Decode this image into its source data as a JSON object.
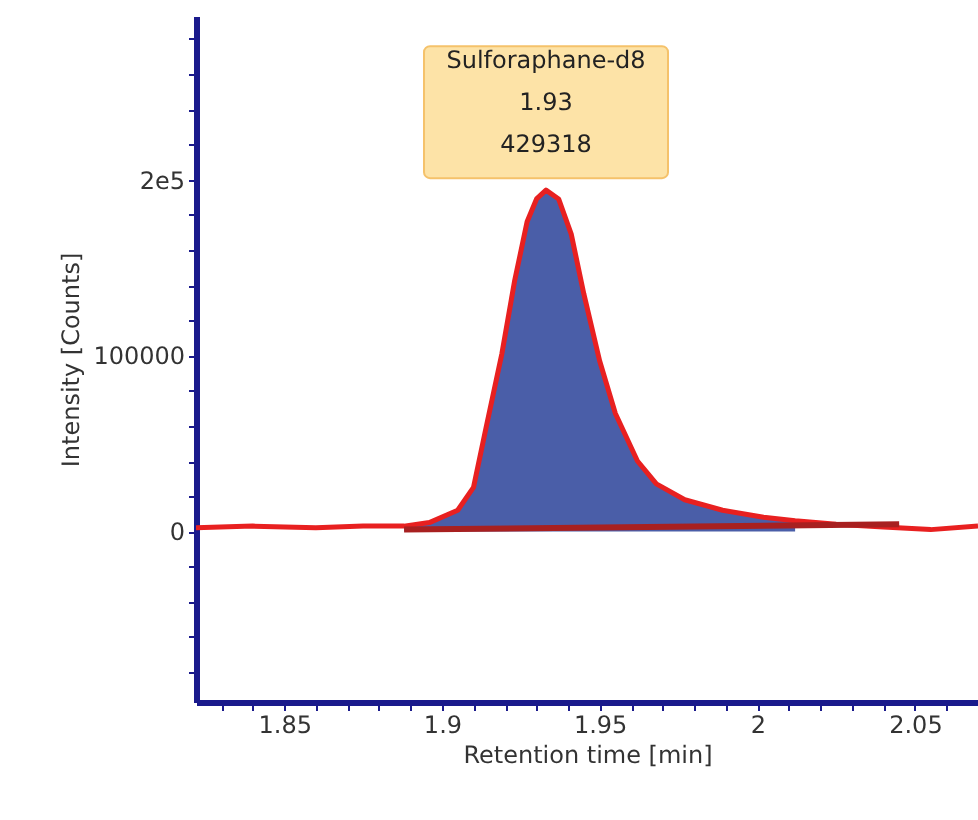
{
  "chart_data": {
    "type": "line",
    "xlabel": "Retention time [min]",
    "ylabel": "Intensity [Counts]",
    "xlim": [
      1.822,
      2.07
    ],
    "ylim": [
      -97000,
      293000
    ],
    "xticks": [
      1.85,
      1.9,
      1.95,
      2,
      2.05,
      {
        "value": 1.83,
        "label": null
      },
      {
        "value": 1.84,
        "label": null
      },
      {
        "value": 1.86,
        "label": null
      },
      {
        "value": 1.87,
        "label": null
      },
      {
        "value": 1.88,
        "label": null
      },
      {
        "value": 1.89,
        "label": null
      },
      {
        "value": 1.91,
        "label": null
      },
      {
        "value": 1.92,
        "label": null
      },
      {
        "value": 1.93,
        "label": null
      },
      {
        "value": 1.94,
        "label": null
      },
      {
        "value": 1.96,
        "label": null
      },
      {
        "value": 1.97,
        "label": null
      },
      {
        "value": 1.98,
        "label": null
      },
      {
        "value": 1.99,
        "label": null
      },
      {
        "value": 2.01,
        "label": null
      },
      {
        "value": 2.02,
        "label": null
      },
      {
        "value": 2.03,
        "label": null
      },
      {
        "value": 2.04,
        "label": null
      },
      {
        "value": 2.06,
        "label": null
      }
    ],
    "yticks": [
      0,
      100000,
      {
        "value": 200000,
        "label": "2e5"
      },
      {
        "value": -80000,
        "label": null
      },
      {
        "value": -60000,
        "label": null
      },
      {
        "value": -40000,
        "label": null
      },
      {
        "value": -20000,
        "label": null
      },
      {
        "value": 20000,
        "label": null
      },
      {
        "value": 40000,
        "label": null
      },
      {
        "value": 60000,
        "label": null
      },
      {
        "value": 80000,
        "label": null
      },
      {
        "value": 120000,
        "label": null
      },
      {
        "value": 140000,
        "label": null
      },
      {
        "value": 160000,
        "label": null
      },
      {
        "value": 180000,
        "label": null
      },
      {
        "value": 220000,
        "label": null
      },
      {
        "value": 240000,
        "label": null
      },
      {
        "value": 260000,
        "label": null
      },
      {
        "value": 280000,
        "label": null
      }
    ],
    "grid": false,
    "annotations": [
      "Sulforaphane-d8\n1.93\n429318"
    ],
    "series": [
      {
        "type": "area",
        "color": "#4a5ea8",
        "x": [
          1.888,
          1.896,
          1.905,
          1.91,
          1.914,
          1.919,
          1.923,
          1.927,
          1.93,
          1.933,
          1.937,
          1.941,
          1.945,
          1.95,
          1.955,
          1.962,
          1.968,
          1.977,
          1.989,
          2.002,
          2.012
        ],
        "values": [
          3000,
          5000,
          12000,
          25000,
          59000,
          101000,
          142000,
          176000,
          189000,
          194000,
          189000,
          169000,
          135000,
          97000,
          67000,
          40000,
          27000,
          18000,
          12000,
          8000,
          6000
        ]
      },
      {
        "color": "#e82020",
        "x": [
          1.822,
          1.84,
          1.86,
          1.875,
          1.888,
          1.896,
          1.905,
          1.91,
          1.914,
          1.919,
          1.923,
          1.927,
          1.93,
          1.933,
          1.937,
          1.941,
          1.945,
          1.95,
          1.955,
          1.962,
          1.968,
          1.977,
          1.989,
          2.002,
          2.012,
          2.025,
          2.04,
          2.055,
          2.07
        ],
        "values": [
          2000,
          3000,
          2000,
          3000,
          3000,
          5000,
          12000,
          25000,
          59000,
          101000,
          142000,
          176000,
          189000,
          194000,
          189000,
          169000,
          135000,
          97000,
          67000,
          40000,
          27000,
          18000,
          12000,
          8000,
          6000,
          4000,
          2500,
          1000,
          3000
        ]
      },
      {
        "color": "#a82020",
        "x": [
          1.888,
          2.045
        ],
        "values": [
          1000,
          4000
        ],
        "type": "line"
      }
    ]
  }
}
